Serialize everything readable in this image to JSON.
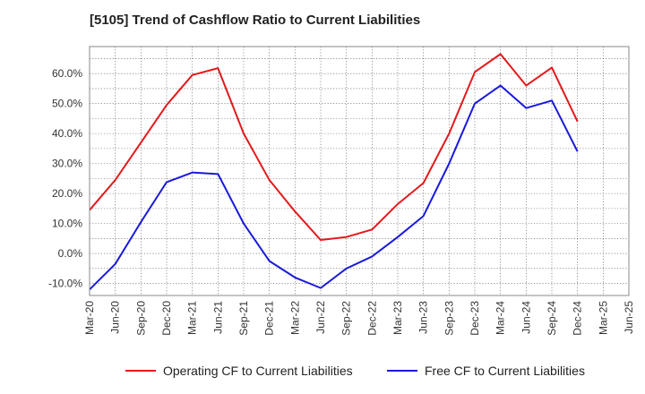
{
  "chart_data": {
    "type": "line",
    "title": "[5105]  Trend of Cashflow Ratio to Current Liabilities",
    "xlabel": "",
    "ylabel": "",
    "categories": [
      "Mar-20",
      "Jun-20",
      "Sep-20",
      "Dec-20",
      "Mar-21",
      "Jun-21",
      "Sep-21",
      "Dec-21",
      "Mar-22",
      "Jun-22",
      "Sep-22",
      "Dec-22",
      "Mar-23",
      "Jun-23",
      "Sep-23",
      "Dec-23",
      "Mar-24",
      "Jun-24",
      "Sep-24",
      "Dec-24",
      "Mar-25",
      "Jun-25"
    ],
    "y_ticks": [
      -10,
      0,
      10,
      20,
      30,
      40,
      50,
      60
    ],
    "y_tick_labels": [
      "-10.0%",
      "0.0%",
      "10.0%",
      "20.0%",
      "30.0%",
      "40.0%",
      "50.0%",
      "60.0%"
    ],
    "ylim": [
      -14,
      69
    ],
    "grid": true,
    "legend_position": "bottom",
    "series": [
      {
        "name": "Operating CF to Current Liabilities",
        "color": "#e41a1c",
        "values": [
          14.5,
          24.5,
          37.0,
          49.5,
          59.5,
          61.8,
          40.0,
          24.5,
          14.0,
          4.5,
          5.5,
          8.0,
          16.5,
          23.5,
          40.0,
          60.5,
          66.5,
          56.0,
          62.0,
          44.0,
          null,
          null
        ]
      },
      {
        "name": "Free CF to Current Liabilities",
        "color": "#1a1adc",
        "values": [
          -12.0,
          -3.5,
          10.5,
          23.8,
          27.0,
          26.5,
          10.0,
          -2.5,
          -8.0,
          -11.5,
          -5.0,
          -1.0,
          5.5,
          12.5,
          30.0,
          50.0,
          56.0,
          48.5,
          51.0,
          34.0,
          null,
          null
        ]
      }
    ]
  }
}
